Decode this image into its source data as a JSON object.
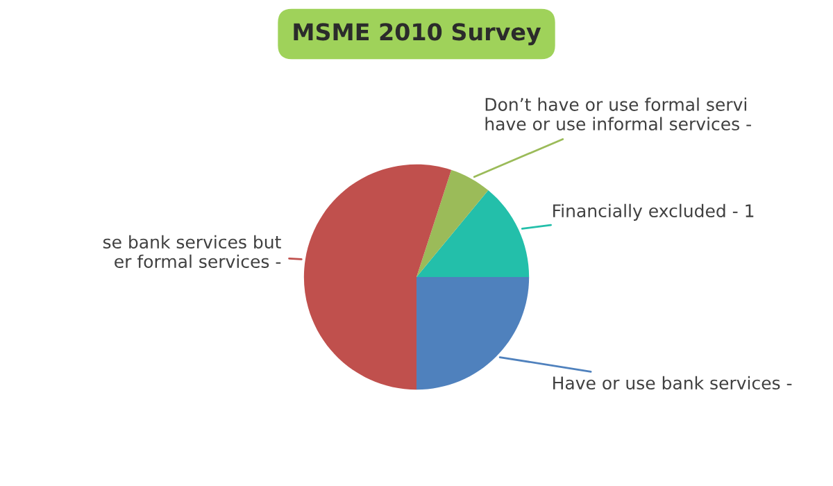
{
  "chart_data": {
    "type": "pie",
    "title": "MSME 2010 Survey",
    "categories": [
      "Have or use bank services -",
      "Financially excluded - 1",
      "Don’t have or use formal servi\nhave or use informal services -",
      "se bank services but\ner formal services -"
    ],
    "values": [
      25,
      14,
      6,
      55
    ],
    "colors": [
      "#4f81bd",
      "#23bfaa",
      "#9bbb59",
      "#c0504d"
    ],
    "legend": false
  }
}
